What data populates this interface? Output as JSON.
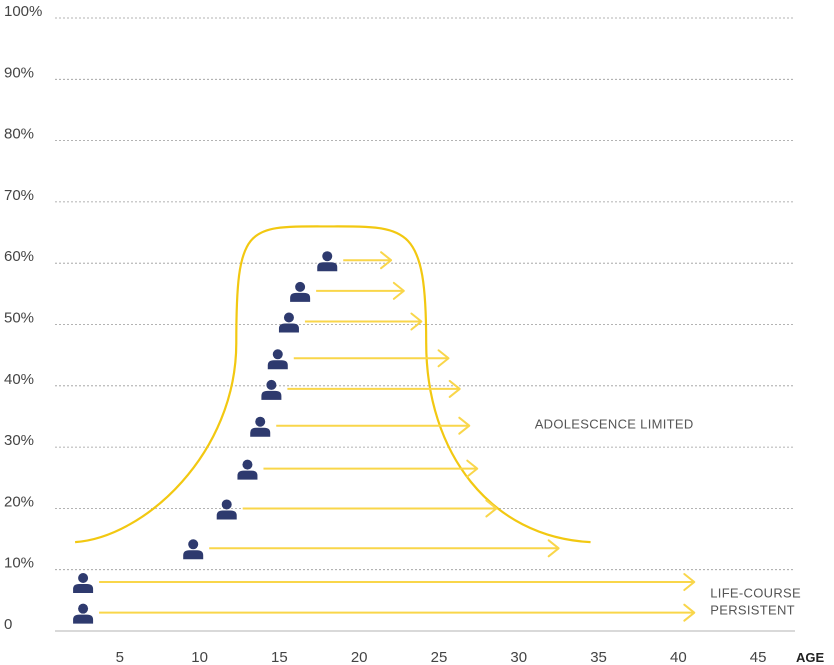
{
  "chart_data": {
    "type": "scatter",
    "title": "",
    "xlabel": "AGE",
    "ylabel": "",
    "xlim": [
      0,
      48
    ],
    "ylim": [
      0,
      100
    ],
    "x_ticks": [
      5,
      10,
      15,
      20,
      25,
      30,
      35,
      40,
      45
    ],
    "y_ticks": [
      {
        "value": 0,
        "label": "0"
      },
      {
        "value": 10,
        "label": "10%"
      },
      {
        "value": 20,
        "label": "20%"
      },
      {
        "value": 30,
        "label": "30%"
      },
      {
        "value": 40,
        "label": "40%"
      },
      {
        "value": 50,
        "label": "50%"
      },
      {
        "value": 60,
        "label": "60%"
      },
      {
        "value": 70,
        "label": "70%"
      },
      {
        "value": 80,
        "label": "80%"
      },
      {
        "value": 90,
        "label": "90%"
      },
      {
        "value": 100,
        "label": "100%"
      }
    ],
    "grid": true,
    "series": [
      {
        "group": "adolescence-limited",
        "points": [
          {
            "x": 18,
            "y": 60,
            "end_x": 22
          },
          {
            "x": 16.3,
            "y": 55,
            "end_x": 22.8
          },
          {
            "x": 15.6,
            "y": 50,
            "end_x": 23.9
          },
          {
            "x": 14.9,
            "y": 44,
            "end_x": 25.6
          },
          {
            "x": 14.5,
            "y": 39,
            "end_x": 26.3
          },
          {
            "x": 13.8,
            "y": 33,
            "end_x": 26.9
          },
          {
            "x": 13,
            "y": 26,
            "end_x": 27.4
          },
          {
            "x": 11.7,
            "y": 19.5,
            "end_x": 28.6
          },
          {
            "x": 9.6,
            "y": 13,
            "end_x": 32.5
          }
        ]
      },
      {
        "group": "life-course-persistent",
        "points": [
          {
            "x": 2.7,
            "y": 7.5,
            "end_x": 41
          },
          {
            "x": 2.7,
            "y": 2.5,
            "end_x": 41
          }
        ]
      }
    ],
    "annotations": [
      {
        "id": "adolescence-limited",
        "lines": [
          "ADOLESCENCE LIMITED"
        ],
        "x": 31,
        "y": 33
      },
      {
        "id": "life-course-persistent",
        "lines": [
          "LIFE-COURSE",
          "PERSISTENT"
        ],
        "x": 42,
        "y": 5.5
      }
    ],
    "envelope": {
      "left_base": {
        "x": 2.2,
        "y": 14.5
      },
      "left_wall": {
        "x": 12.3,
        "y": 47
      },
      "peak": {
        "x": 18,
        "y": 66
      },
      "right_wall": {
        "x": 24.2,
        "y": 47
      },
      "right_base": {
        "x": 34.5,
        "y": 14.5
      }
    },
    "colors": {
      "arrow": "#F9D64A",
      "envelope": "#F2C811",
      "person": "#2E3A6E",
      "grid": "#9a9a9a",
      "text": "#444444"
    }
  }
}
